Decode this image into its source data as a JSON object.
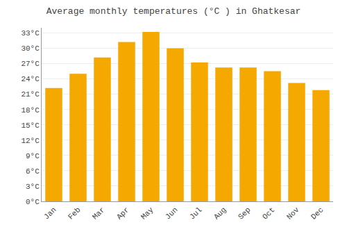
{
  "chart_data": {
    "type": "bar",
    "title": "Average monthly temperatures (°C ) in Ghatkesar",
    "categories": [
      "Jan",
      "Feb",
      "Mar",
      "Apr",
      "May",
      "Jun",
      "Jul",
      "Aug",
      "Sep",
      "Oct",
      "Nov",
      "Dec"
    ],
    "values": [
      22.2,
      25.0,
      28.2,
      31.2,
      33.2,
      30.0,
      27.2,
      26.2,
      26.2,
      25.5,
      23.2,
      21.8
    ],
    "color": "#F5A800",
    "ylim": [
      0,
      34
    ],
    "yticks": [
      {
        "value": 0,
        "label": "0°C"
      },
      {
        "value": 3,
        "label": "3°C"
      },
      {
        "value": 6,
        "label": "6°C"
      },
      {
        "value": 9,
        "label": "9°C"
      },
      {
        "value": 12,
        "label": "12°C"
      },
      {
        "value": 15,
        "label": "15°C"
      },
      {
        "value": 18,
        "label": "18°C"
      },
      {
        "value": 21,
        "label": "21°C"
      },
      {
        "value": 24,
        "label": "24°C"
      },
      {
        "value": 27,
        "label": "27°C"
      },
      {
        "value": 30,
        "label": "30°C"
      },
      {
        "value": 33,
        "label": "33°C"
      }
    ],
    "grid": true
  }
}
